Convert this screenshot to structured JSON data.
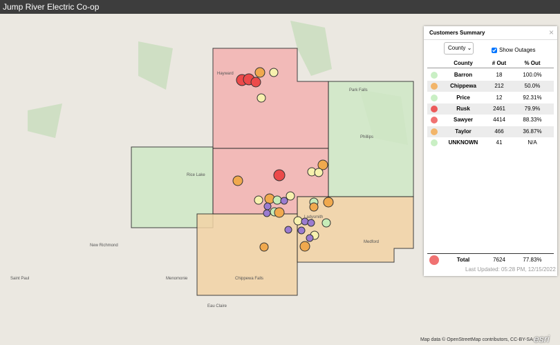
{
  "header": {
    "title": "Jump River Electric Co-op"
  },
  "panel": {
    "title": "Customers Summary",
    "close": "×",
    "group_by": "County",
    "show_outages": "Show Outages",
    "columns": [
      "County",
      "# Out",
      "% Out"
    ],
    "rows": [
      {
        "county": "Barron",
        "out": "18",
        "pct": "100.0%",
        "color": "#c9efc4"
      },
      {
        "county": "Chippewa",
        "out": "212",
        "pct": "50.0%",
        "color": "#f2b56a"
      },
      {
        "county": "Price",
        "out": "12",
        "pct": "92.31%",
        "color": "#c9efc4"
      },
      {
        "county": "Rusk",
        "out": "2461",
        "pct": "79.9%",
        "color": "#ec5a5a"
      },
      {
        "county": "Sawyer",
        "out": "4414",
        "pct": "88.33%",
        "color": "#f07272"
      },
      {
        "county": "Taylor",
        "out": "466",
        "pct": "36.87%",
        "color": "#f2b56a"
      },
      {
        "county": "UNKNOWN",
        "out": "41",
        "pct": "N/A",
        "color": "#c9efc4"
      }
    ],
    "total": {
      "label": "Total",
      "out": "7624",
      "pct": "77.83%",
      "color": "#f07272"
    },
    "updated": "Last Updated: 05:28 PM, 12/15/2022"
  },
  "map": {
    "attribution": "Map data © OpenStreetMap contributors, CC-BY-SA",
    "logo": "esri",
    "places": [
      "Hayward",
      "Ladysmith",
      "Medford",
      "Phillips",
      "Rice Lake",
      "Chippewa Falls",
      "Eau Claire",
      "Menomonie",
      "New Richmond",
      "Park Falls",
      "Saint Paul"
    ]
  }
}
